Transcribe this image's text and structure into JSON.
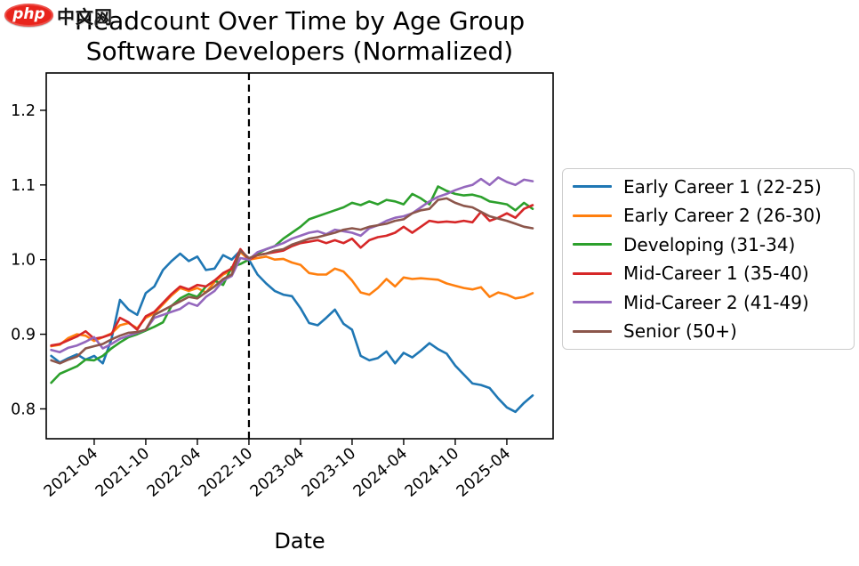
{
  "watermark": {
    "php": "php",
    "cn": "中文网"
  },
  "title": {
    "line1": "Headcount Over Time by Age Group",
    "line2": "Software Developers (Normalized)"
  },
  "chart_data": {
    "type": "line",
    "title": "Headcount Over Time by Age Group — Software Developers (Normalized)",
    "xlabel": "Date",
    "ylabel": "",
    "grid": false,
    "legend_position": "right",
    "ylim": [
      0.76,
      1.25
    ],
    "y_tick_values": [
      0.8,
      0.9,
      1.0,
      1.1,
      1.2
    ],
    "x_tick_labels": [
      "2021-04",
      "2021-10",
      "2022-04",
      "2022-10",
      "2023-04",
      "2023-10",
      "2024-04",
      "2024-10",
      "2025-04"
    ],
    "x_tick_indices": [
      5,
      11,
      17,
      23,
      29,
      35,
      41,
      47,
      53
    ],
    "annotations": [
      {
        "type": "vline",
        "x": "2022-10",
        "style": "dashed",
        "color": "#000000"
      }
    ],
    "x": [
      "2020-11",
      "2020-12",
      "2021-01",
      "2021-02",
      "2021-03",
      "2021-04",
      "2021-05",
      "2021-06",
      "2021-07",
      "2021-08",
      "2021-09",
      "2021-10",
      "2021-11",
      "2021-12",
      "2022-01",
      "2022-02",
      "2022-03",
      "2022-04",
      "2022-05",
      "2022-06",
      "2022-07",
      "2022-08",
      "2022-09",
      "2022-10",
      "2022-11",
      "2022-12",
      "2023-01",
      "2023-02",
      "2023-03",
      "2023-04",
      "2023-05",
      "2023-06",
      "2023-07",
      "2023-08",
      "2023-09",
      "2023-10",
      "2023-11",
      "2023-12",
      "2024-01",
      "2024-02",
      "2024-03",
      "2024-04",
      "2024-05",
      "2024-06",
      "2024-07",
      "2024-08",
      "2024-09",
      "2024-10",
      "2024-11",
      "2024-12",
      "2025-01",
      "2025-02",
      "2025-03",
      "2025-04",
      "2025-05",
      "2025-06",
      "2025-07"
    ],
    "series": [
      {
        "name": "Early Career 1 (22-25)",
        "color": "#1f77b4",
        "values": [
          0.871,
          0.862,
          0.868,
          0.873,
          0.866,
          0.871,
          0.861,
          0.893,
          0.946,
          0.933,
          0.926,
          0.955,
          0.964,
          0.986,
          0.998,
          1.008,
          0.998,
          1.004,
          0.986,
          0.988,
          1.006,
          1.0,
          1.012,
          1.0,
          0.98,
          0.968,
          0.958,
          0.953,
          0.951,
          0.935,
          0.915,
          0.912,
          0.922,
          0.933,
          0.914,
          0.906,
          0.871,
          0.865,
          0.868,
          0.877,
          0.861,
          0.875,
          0.869,
          0.878,
          0.888,
          0.88,
          0.874,
          0.858,
          0.846,
          0.834,
          0.832,
          0.828,
          0.814,
          0.802,
          0.796,
          0.808,
          0.818
        ]
      },
      {
        "name": "Early Career 2 (26-30)",
        "color": "#ff7f0e",
        "values": [
          0.884,
          0.886,
          0.895,
          0.9,
          0.898,
          0.891,
          0.896,
          0.901,
          0.912,
          0.915,
          0.908,
          0.922,
          0.928,
          0.94,
          0.952,
          0.962,
          0.958,
          0.962,
          0.956,
          0.97,
          0.98,
          0.986,
          1.01,
          1.0,
          1.002,
          1.004,
          1.0,
          1.001,
          0.996,
          0.993,
          0.982,
          0.98,
          0.98,
          0.988,
          0.984,
          0.972,
          0.956,
          0.953,
          0.962,
          0.974,
          0.964,
          0.976,
          0.974,
          0.975,
          0.974,
          0.973,
          0.968,
          0.965,
          0.962,
          0.96,
          0.963,
          0.95,
          0.956,
          0.953,
          0.948,
          0.95,
          0.955
        ]
      },
      {
        "name": "Developing (31-34)",
        "color": "#2ca02c",
        "values": [
          0.835,
          0.847,
          0.852,
          0.857,
          0.866,
          0.865,
          0.871,
          0.881,
          0.889,
          0.896,
          0.9,
          0.905,
          0.91,
          0.916,
          0.938,
          0.948,
          0.954,
          0.95,
          0.964,
          0.972,
          0.966,
          0.99,
          0.994,
          1.0,
          1.008,
          1.014,
          1.018,
          1.028,
          1.036,
          1.044,
          1.054,
          1.058,
          1.062,
          1.066,
          1.07,
          1.076,
          1.073,
          1.078,
          1.074,
          1.08,
          1.078,
          1.074,
          1.088,
          1.082,
          1.074,
          1.098,
          1.092,
          1.088,
          1.086,
          1.087,
          1.084,
          1.078,
          1.076,
          1.074,
          1.066,
          1.076,
          1.068
        ]
      },
      {
        "name": "Mid-Career 1 (35-40)",
        "color": "#d62728",
        "values": [
          0.885,
          0.887,
          0.892,
          0.897,
          0.904,
          0.894,
          0.896,
          0.9,
          0.922,
          0.916,
          0.906,
          0.924,
          0.93,
          0.942,
          0.954,
          0.964,
          0.96,
          0.966,
          0.964,
          0.972,
          0.982,
          0.988,
          1.014,
          1.0,
          1.006,
          1.008,
          1.01,
          1.012,
          1.018,
          1.022,
          1.024,
          1.026,
          1.022,
          1.026,
          1.022,
          1.028,
          1.016,
          1.026,
          1.03,
          1.032,
          1.036,
          1.044,
          1.036,
          1.044,
          1.052,
          1.05,
          1.051,
          1.05,
          1.052,
          1.05,
          1.064,
          1.052,
          1.056,
          1.062,
          1.056,
          1.068,
          1.073
        ]
      },
      {
        "name": "Mid-Career 2 (41-49)",
        "color": "#9467bd",
        "values": [
          0.879,
          0.876,
          0.882,
          0.885,
          0.89,
          0.896,
          0.881,
          0.887,
          0.894,
          0.898,
          0.902,
          0.906,
          0.922,
          0.926,
          0.93,
          0.934,
          0.942,
          0.938,
          0.95,
          0.958,
          0.972,
          0.978,
          1.002,
          1.0,
          1.01,
          1.014,
          1.018,
          1.022,
          1.028,
          1.032,
          1.036,
          1.038,
          1.034,
          1.04,
          1.038,
          1.036,
          1.032,
          1.042,
          1.046,
          1.052,
          1.056,
          1.058,
          1.062,
          1.07,
          1.078,
          1.084,
          1.088,
          1.093,
          1.097,
          1.1,
          1.108,
          1.1,
          1.11,
          1.104,
          1.1,
          1.107,
          1.105
        ]
      },
      {
        "name": "Senior (50+)",
        "color": "#8c564b",
        "values": [
          0.865,
          0.861,
          0.866,
          0.87,
          0.881,
          0.884,
          0.887,
          0.893,
          0.898,
          0.902,
          0.903,
          0.906,
          0.926,
          0.932,
          0.938,
          0.944,
          0.95,
          0.948,
          0.956,
          0.964,
          0.974,
          0.98,
          1.012,
          1.002,
          1.006,
          1.008,
          1.012,
          1.014,
          1.02,
          1.024,
          1.028,
          1.03,
          1.033,
          1.036,
          1.04,
          1.042,
          1.04,
          1.044,
          1.046,
          1.048,
          1.052,
          1.054,
          1.062,
          1.066,
          1.068,
          1.08,
          1.082,
          1.076,
          1.072,
          1.07,
          1.064,
          1.058,
          1.055,
          1.052,
          1.048,
          1.044,
          1.042
        ]
      }
    ]
  }
}
